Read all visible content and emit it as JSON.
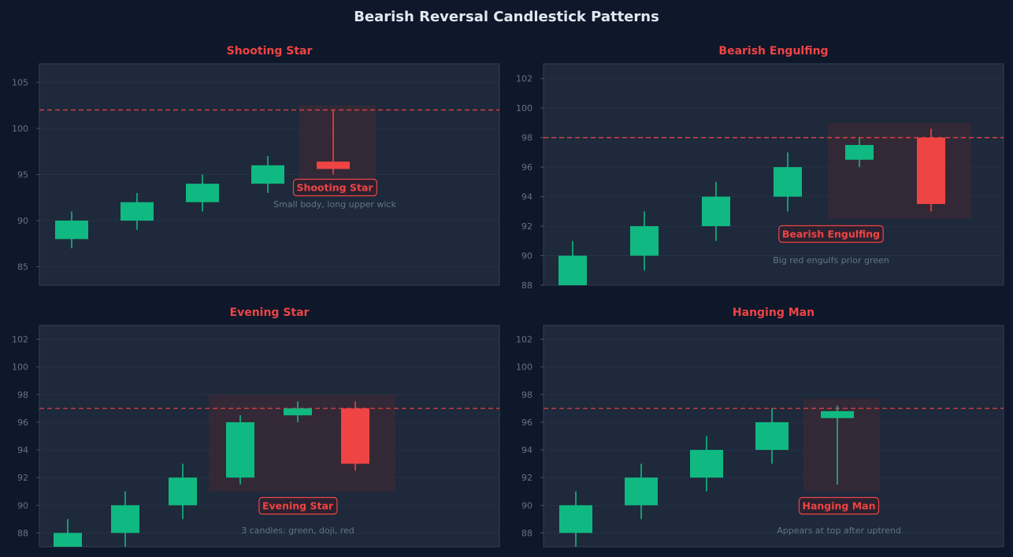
{
  "title": "Bearish Reversal Candlestick Patterns",
  "colors": {
    "background": "#0f172a",
    "panel": "#1e293b",
    "bull": "#10b981",
    "bear": "#ef4444",
    "grid": "#263246",
    "tick_text": "#64748b",
    "title": "#e2e8f0",
    "highlight": "#3b2a36"
  },
  "chart_data": [
    {
      "type": "candlestick",
      "title": "Shooting Star",
      "ylim": [
        83,
        107
      ],
      "yticks": [
        85,
        90,
        95,
        100,
        105
      ],
      "grid": true,
      "resistance": 102,
      "candles": [
        {
          "open": 88,
          "high": 91,
          "low": 87,
          "close": 90
        },
        {
          "open": 90,
          "high": 93,
          "low": 89,
          "close": 92
        },
        {
          "open": 92,
          "high": 95,
          "low": 91,
          "close": 94
        },
        {
          "open": 94,
          "high": 97,
          "low": 93,
          "close": 96
        },
        {
          "open": 96.4,
          "high": 102,
          "low": 95,
          "close": 95.6
        }
      ],
      "highlight": {
        "from_candle": 4,
        "to_candle": 4,
        "low": 94.5,
        "high": 102.5
      },
      "label": "Shooting Star",
      "description": "Small body, long upper wick"
    },
    {
      "type": "candlestick",
      "title": "Bearish Engulfing",
      "ylim": [
        88,
        103
      ],
      "yticks": [
        88,
        90,
        92,
        94,
        96,
        98,
        100,
        102
      ],
      "grid": true,
      "resistance": 98,
      "candles": [
        {
          "open": 88,
          "high": 91,
          "low": 87,
          "close": 90
        },
        {
          "open": 90,
          "high": 93,
          "low": 89,
          "close": 92
        },
        {
          "open": 92,
          "high": 95,
          "low": 91,
          "close": 94
        },
        {
          "open": 94,
          "high": 97,
          "low": 93,
          "close": 96
        },
        {
          "open": 96.5,
          "high": 98,
          "low": 96,
          "close": 97.5
        },
        {
          "open": 98,
          "high": 98.6,
          "low": 93,
          "close": 93.5
        }
      ],
      "highlight": {
        "from_candle": 4,
        "to_candle": 5,
        "low": 92.5,
        "high": 99
      },
      "label": "Bearish Engulfing",
      "description": "Big red engulfs prior green"
    },
    {
      "type": "candlestick",
      "title": "Evening Star",
      "ylim": [
        87,
        103
      ],
      "yticks": [
        88,
        90,
        92,
        94,
        96,
        98,
        100,
        102
      ],
      "grid": true,
      "resistance": 97,
      "candles": [
        {
          "open": 86,
          "high": 89,
          "low": 85,
          "close": 88
        },
        {
          "open": 88,
          "high": 91,
          "low": 87,
          "close": 90
        },
        {
          "open": 90,
          "high": 93,
          "low": 89,
          "close": 92
        },
        {
          "open": 92,
          "high": 96.5,
          "low": 91.5,
          "close": 96
        },
        {
          "open": 96.5,
          "high": 97.5,
          "low": 96,
          "close": 97
        },
        {
          "open": 97,
          "high": 97.5,
          "low": 92.5,
          "close": 93
        }
      ],
      "highlight": {
        "from_candle": 3,
        "to_candle": 5,
        "low": 91,
        "high": 98
      },
      "label": "Evening Star",
      "description": "3 candles: green, doji, red"
    },
    {
      "type": "candlestick",
      "title": "Hanging Man",
      "ylim": [
        87,
        103
      ],
      "yticks": [
        88,
        90,
        92,
        94,
        96,
        98,
        100,
        102
      ],
      "grid": true,
      "resistance": 97,
      "candles": [
        {
          "open": 88,
          "high": 91,
          "low": 87,
          "close": 90
        },
        {
          "open": 90,
          "high": 93,
          "low": 89,
          "close": 92
        },
        {
          "open": 92,
          "high": 95,
          "low": 91,
          "close": 94
        },
        {
          "open": 94,
          "high": 97,
          "low": 93,
          "close": 96
        },
        {
          "open": 96.3,
          "high": 97.2,
          "low": 91.5,
          "close": 96.8
        }
      ],
      "highlight": {
        "from_candle": 4,
        "to_candle": 4,
        "low": 91,
        "high": 97.7
      },
      "label": "Hanging Man",
      "description": "Appears at top after uptrend"
    }
  ]
}
